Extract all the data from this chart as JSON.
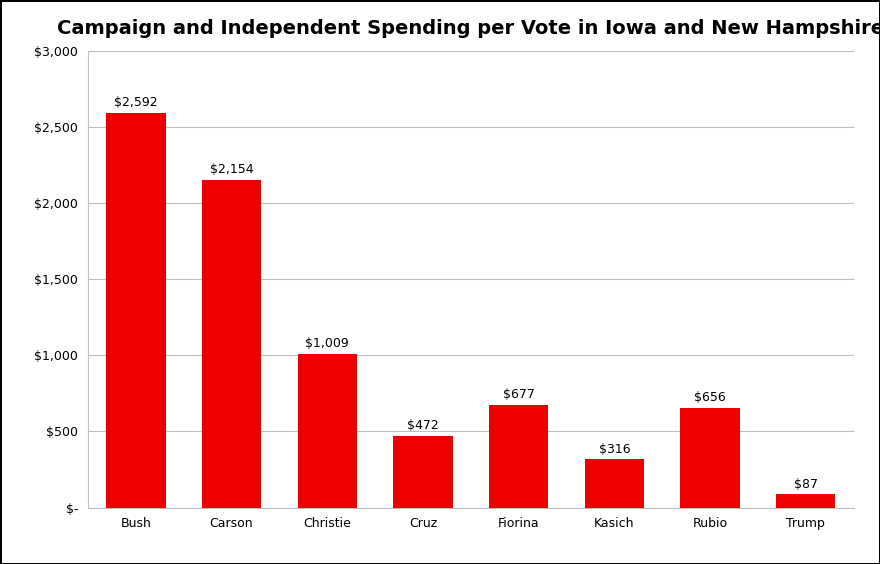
{
  "title": "Campaign and Independent Spending per Vote in Iowa and New Hampshire",
  "categories": [
    "Bush",
    "Carson",
    "Christie",
    "Cruz",
    "Fiorina",
    "Kasich",
    "Rubio",
    "Trump"
  ],
  "values": [
    2592,
    2154,
    1009,
    472,
    677,
    316,
    656,
    87
  ],
  "labels": [
    "$2,592",
    "$2,154",
    "$1,009",
    "$472",
    "$677",
    "$316",
    "$656",
    "$87"
  ],
  "bar_color": "#EE0000",
  "background_color": "#FFFFFF",
  "ylim": [
    0,
    3000
  ],
  "yticks": [
    0,
    500,
    1000,
    1500,
    2000,
    2500,
    3000
  ],
  "ytick_labels": [
    "$-",
    "$500",
    "$1,000",
    "$1,500",
    "$2,000",
    "$2,500",
    "$3,000"
  ],
  "title_fontsize": 14,
  "label_fontsize": 9,
  "tick_fontsize": 9,
  "grid_color": "#C0C0C0",
  "border_color": "#000000",
  "bar_width": 0.62
}
